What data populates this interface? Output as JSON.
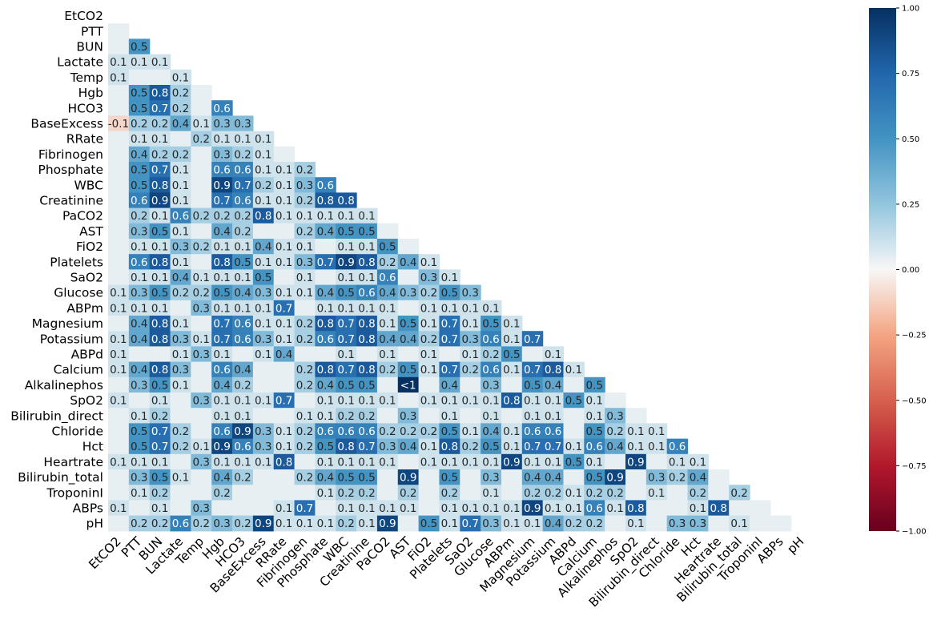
{
  "chart_data": {
    "type": "heatmap",
    "variables": [
      "EtCO2",
      "PTT",
      "BUN",
      "Lactate",
      "Temp",
      "Hgb",
      "HCO3",
      "BaseExcess",
      "RRate",
      "Fibrinogen",
      "Phosphate",
      "WBC",
      "Creatinine",
      "PaCO2",
      "AST",
      "FiO2",
      "Platelets",
      "SaO2",
      "Glucose",
      "ABPm",
      "Magnesium",
      "Potassium",
      "ABPd",
      "Calcium",
      "Alkalinephos",
      "SpO2",
      "Bilirubin_direct",
      "Chloride",
      "Hct",
      "Heartrate",
      "Bilirubin_total",
      "TroponinI",
      "ABPs",
      "pH"
    ],
    "lower_triangle_only": true,
    "annotations": [
      [],
      [
        null
      ],
      [
        null,
        0.5
      ],
      [
        0.1,
        0.1,
        0.1
      ],
      [
        0.1,
        null,
        null,
        0.1
      ],
      [
        null,
        0.5,
        0.8,
        0.2,
        null
      ],
      [
        null,
        0.5,
        0.7,
        0.2,
        null,
        0.6
      ],
      [
        -0.1,
        0.2,
        0.2,
        0.4,
        0.1,
        0.3,
        0.3
      ],
      [
        null,
        0.1,
        0.1,
        null,
        0.2,
        0.1,
        0.1,
        0.1
      ],
      [
        null,
        0.4,
        0.2,
        0.2,
        null,
        0.3,
        0.2,
        0.1,
        null
      ],
      [
        null,
        0.5,
        0.7,
        0.1,
        null,
        0.6,
        0.6,
        0.1,
        0.1,
        0.2
      ],
      [
        null,
        0.5,
        0.8,
        0.1,
        null,
        0.9,
        0.7,
        0.2,
        0.1,
        0.3,
        0.6
      ],
      [
        null,
        0.6,
        0.9,
        0.1,
        null,
        0.7,
        0.6,
        0.1,
        0.1,
        0.2,
        0.8,
        0.8
      ],
      [
        null,
        0.2,
        0.1,
        0.6,
        0.2,
        0.2,
        0.2,
        0.8,
        0.1,
        0.1,
        0.1,
        0.1,
        0.1
      ],
      [
        null,
        0.3,
        0.5,
        0.1,
        null,
        0.4,
        0.2,
        null,
        null,
        0.2,
        0.4,
        0.5,
        0.5,
        null
      ],
      [
        null,
        0.1,
        0.1,
        0.3,
        0.2,
        0.1,
        0.1,
        0.4,
        0.1,
        0.1,
        null,
        0.1,
        0.1,
        0.5,
        null
      ],
      [
        null,
        0.6,
        0.8,
        0.1,
        null,
        0.8,
        0.5,
        0.1,
        0.1,
        0.3,
        0.7,
        0.9,
        0.8,
        0.2,
        0.4,
        0.1
      ],
      [
        null,
        0.1,
        0.1,
        0.4,
        0.1,
        0.1,
        0.1,
        0.5,
        null,
        0.1,
        null,
        0.1,
        0.1,
        0.6,
        null,
        0.3,
        0.1
      ],
      [
        0.1,
        0.3,
        0.5,
        0.2,
        0.2,
        0.5,
        0.4,
        0.3,
        0.1,
        0.1,
        0.4,
        0.5,
        0.6,
        0.4,
        0.3,
        0.2,
        0.5,
        0.3
      ],
      [
        0.1,
        0.1,
        0.1,
        null,
        0.3,
        0.1,
        0.1,
        0.1,
        0.7,
        null,
        0.1,
        0.1,
        0.1,
        0.1,
        null,
        0.1,
        0.1,
        0.1,
        0.1
      ],
      [
        null,
        0.4,
        0.8,
        0.1,
        null,
        0.7,
        0.6,
        0.1,
        0.1,
        0.2,
        0.8,
        0.7,
        0.8,
        0.1,
        0.5,
        0.1,
        0.7,
        0.1,
        0.5,
        0.1
      ],
      [
        0.1,
        0.4,
        0.8,
        0.3,
        0.1,
        0.7,
        0.6,
        0.3,
        0.1,
        0.2,
        0.6,
        0.7,
        0.8,
        0.4,
        0.4,
        0.2,
        0.7,
        0.3,
        0.6,
        0.1,
        0.7
      ],
      [
        0.1,
        null,
        null,
        0.1,
        0.3,
        0.1,
        null,
        0.1,
        0.4,
        null,
        null,
        0.1,
        null,
        0.1,
        null,
        0.1,
        null,
        0.1,
        0.2,
        0.5,
        null,
        0.1
      ],
      [
        0.1,
        0.4,
        0.8,
        0.3,
        null,
        0.6,
        0.4,
        null,
        null,
        0.2,
        0.8,
        0.7,
        0.8,
        0.2,
        0.5,
        0.1,
        0.7,
        0.2,
        0.6,
        0.1,
        0.7,
        0.8,
        0.1
      ],
      [
        null,
        0.3,
        0.5,
        0.1,
        null,
        0.4,
        0.2,
        null,
        null,
        0.2,
        0.4,
        0.5,
        0.5,
        null,
        "<1",
        null,
        0.4,
        null,
        0.3,
        null,
        0.5,
        0.4,
        null,
        0.5
      ],
      [
        0.1,
        null,
        0.1,
        null,
        0.3,
        0.1,
        0.1,
        0.1,
        0.7,
        null,
        0.1,
        0.1,
        0.1,
        0.1,
        null,
        0.1,
        0.1,
        0.1,
        0.1,
        0.8,
        0.1,
        0.1,
        0.5,
        0.1
      ],
      [
        null,
        0.1,
        0.2,
        null,
        null,
        0.1,
        0.1,
        null,
        null,
        0.1,
        0.1,
        0.2,
        0.2,
        null,
        0.3,
        null,
        0.1,
        null,
        0.1,
        null,
        0.1,
        0.1,
        null,
        0.1,
        0.3
      ],
      [
        null,
        0.5,
        0.7,
        0.2,
        null,
        0.6,
        0.9,
        0.3,
        0.1,
        0.2,
        0.6,
        0.6,
        0.6,
        0.2,
        0.2,
        0.2,
        0.5,
        0.1,
        0.4,
        0.1,
        0.6,
        0.6,
        null,
        0.5,
        0.2,
        0.1,
        0.1
      ],
      [
        null,
        0.5,
        0.7,
        0.2,
        0.1,
        0.9,
        0.6,
        0.3,
        0.1,
        0.2,
        0.5,
        0.8,
        0.7,
        0.3,
        0.4,
        0.1,
        0.8,
        0.2,
        0.5,
        0.1,
        0.7,
        0.7,
        0.1,
        0.6,
        0.4,
        0.1,
        0.1,
        0.6
      ],
      [
        0.1,
        0.1,
        0.1,
        null,
        0.3,
        0.1,
        0.1,
        0.1,
        0.8,
        null,
        0.1,
        0.1,
        0.1,
        0.1,
        null,
        0.1,
        0.1,
        0.1,
        0.1,
        0.9,
        0.1,
        0.1,
        0.5,
        0.1,
        null,
        0.9,
        null,
        0.1,
        0.1
      ],
      [
        null,
        0.3,
        0.5,
        0.1,
        null,
        0.4,
        0.2,
        null,
        null,
        0.2,
        0.4,
        0.5,
        0.5,
        null,
        0.9,
        null,
        0.5,
        null,
        0.3,
        null,
        0.4,
        0.4,
        null,
        0.5,
        0.9,
        null,
        0.3,
        0.2,
        0.4,
        null
      ],
      [
        null,
        0.1,
        0.2,
        null,
        null,
        0.2,
        null,
        null,
        null,
        null,
        0.1,
        0.2,
        0.2,
        null,
        0.2,
        null,
        0.2,
        null,
        0.1,
        null,
        0.2,
        0.2,
        0.1,
        0.2,
        0.2,
        null,
        0.1,
        null,
        0.2,
        null,
        0.2
      ],
      [
        0.1,
        null,
        0.1,
        null,
        0.3,
        null,
        null,
        null,
        0.1,
        0.7,
        null,
        0.1,
        0.1,
        0.1,
        0.1,
        null,
        0.1,
        0.1,
        0.1,
        0.1,
        0.9,
        0.1,
        0.1,
        0.6,
        0.1,
        0.8,
        null,
        null,
        0.1,
        0.8,
        null,
        null
      ],
      [
        null,
        0.2,
        0.2,
        0.6,
        0.2,
        0.3,
        0.2,
        0.9,
        0.1,
        0.1,
        0.1,
        0.2,
        0.1,
        0.9,
        null,
        0.5,
        0.1,
        0.7,
        0.3,
        0.1,
        0.1,
        0.4,
        0.2,
        0.2,
        null,
        0.1,
        null,
        0.3,
        0.3,
        null,
        0.1,
        null,
        null,
        0.1
      ]
    ],
    "colorbar": {
      "min": -1.0,
      "max": 1.0,
      "ticks": [
        "1.00",
        "0.75",
        "0.50",
        "0.25",
        "0.00",
        "−0.25",
        "−0.50",
        "−0.75",
        "−1.00"
      ]
    },
    "colormap": "RdBu",
    "grid": false
  }
}
